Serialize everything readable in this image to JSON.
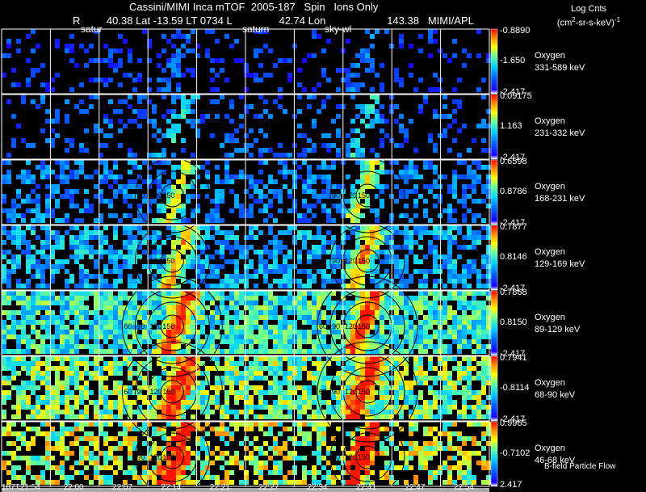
{
  "header": {
    "title": "Cassini/MIMI Inca mTOF",
    "date": "2005-187",
    "mode": "Spin",
    "ions": "Ions Only",
    "r_label": "R",
    "r_value": "40.38",
    "lat_label": "Lat",
    "lat_value": "-13.59",
    "lt_label": "LT",
    "lt_value": "0734",
    "l_label": "L",
    "l_value": "42.74",
    "lon_label": "Lon",
    "lon_value": "143.38",
    "institution": "MIMI/APL",
    "markers": [
      "satur",
      "saturn",
      "sky-wl"
    ]
  },
  "legend": {
    "title": "Log Cnts",
    "units": "(cm",
    "units_exp": "2",
    "units_rest": "-sr-s-keV)",
    "units_exp2": "-1"
  },
  "colors": {
    "background": "#000000",
    "grid": "#ffffff",
    "contour": "#000000",
    "scale": [
      "#ffffff",
      "#1a00ff",
      "#0066ff",
      "#00d4ff",
      "#66ff99",
      "#ffff00",
      "#ff8c00",
      "#ff0000"
    ]
  },
  "footer": {
    "flow_label": "B-field Particle Flow"
  },
  "chart_data": {
    "type": "heatmap",
    "title": "Cassini/MIMI Inca mTOF 2005-187 Spin Ions Only",
    "x_ticks": [
      "187T21:54",
      "22:00",
      "22:07",
      "22:14",
      "22:21",
      "22:27",
      "22:34",
      "22:41",
      "22:47",
      "22:54"
    ],
    "columns": 10,
    "panels": [
      {
        "species": "Oxygen",
        "energy": "331-589 keV",
        "cmax": "-0.8890",
        "cmid": "-1.650",
        "cmin": "-2.417",
        "density": 0.18,
        "level": 0.25,
        "peak": 0.15,
        "contours": []
      },
      {
        "species": "Oxygen",
        "energy": "231-332 keV",
        "cmax": "0.09175",
        "cmid": "1.163",
        "cmin": "-2.417",
        "density": 0.22,
        "level": 0.3,
        "peak": 0.35,
        "contours": []
      },
      {
        "species": "Oxygen",
        "energy": "168-231 keV",
        "cmax": "0.6598",
        "cmid": "0.8786",
        "cmin": "-2.417",
        "density": 0.45,
        "level": 0.35,
        "peak": 0.75,
        "contours": [
          "150",
          "120",
          "90"
        ]
      },
      {
        "species": "Oxygen",
        "energy": "129-169 keV",
        "cmax": "0.7877",
        "cmid": "0.8146",
        "cmin": "-2.417",
        "density": 0.6,
        "level": 0.42,
        "peak": 0.8,
        "contours": [
          "150",
          "120",
          "90"
        ]
      },
      {
        "species": "Oxygen",
        "energy": "89-129 keV",
        "cmax": "0.7868",
        "cmid": "0.8150",
        "cmin": "-2.417",
        "density": 0.85,
        "level": 0.55,
        "peak": 0.9,
        "contours": [
          "150",
          "120",
          "90",
          "60"
        ]
      },
      {
        "species": "Oxygen",
        "energy": "68-90 keV",
        "cmax": "0.7941",
        "cmid": "-0.8114",
        "cmin": "-2.417",
        "density": 0.75,
        "level": 0.65,
        "peak": 0.92,
        "contours": [
          "150",
          "120",
          "90",
          "60"
        ]
      },
      {
        "species": "Oxygen",
        "energy": "46-68 keV",
        "cmax": "0.9965",
        "cmid": "-0.7102",
        "cmin": "2.417",
        "density": 0.55,
        "level": 0.72,
        "peak": 0.95,
        "contours": [
          "150",
          "120",
          "90"
        ]
      }
    ]
  }
}
